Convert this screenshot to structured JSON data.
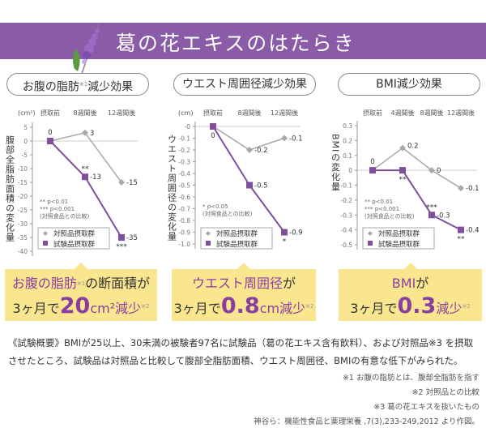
{
  "header": {
    "title": "葛の花エキスのはたらき"
  },
  "colors": {
    "banner": "#8a5ba6",
    "control": "#a9a9a9",
    "test": "#7f4e9c",
    "callout": "#fbe690"
  },
  "legend": {
    "control": "対照品摂取群",
    "test": "試験品摂取群"
  },
  "chart_data": [
    {
      "type": "line",
      "title": "お腹の脂肪",
      "title_sup": "※1",
      "title_suffix": "減少効果",
      "unit": "(cm²)",
      "ylabel": "腹部全脂肪面積の変化量",
      "categories": [
        "摂取前",
        "8週間後",
        "12週間後"
      ],
      "ylim": [
        -40,
        5
      ],
      "yticks": [
        "5",
        "0",
        "-5",
        "-10",
        "-15",
        "-20",
        "-25",
        "-30",
        "-35",
        "-40"
      ],
      "ytick_values": [
        5,
        0,
        -5,
        -10,
        -15,
        -20,
        -25,
        -30,
        -35,
        -40
      ],
      "series": [
        {
          "name": "対照品摂取群",
          "values": [
            0,
            3,
            -15
          ],
          "labels": [
            "0",
            "3",
            "-15"
          ],
          "sig": [
            "",
            "",
            ""
          ]
        },
        {
          "name": "試験品摂取群",
          "values": [
            0,
            -13,
            -35
          ],
          "labels": [
            "",
            "-13",
            "-35"
          ],
          "sig": [
            "",
            "**",
            "***"
          ]
        }
      ],
      "notes": [
        "** p<0.01",
        "*** p<0.001",
        "(対照食品との比較)"
      ]
    },
    {
      "type": "line",
      "title": "ウエスト周囲径減少効果",
      "unit": "(cm)",
      "ylabel": "ウエスト周囲径の変化量",
      "categories": [
        "摂取前",
        "8週間後",
        "12週間後"
      ],
      "ylim": [
        -1.0,
        0
      ],
      "yticks": [
        "-0",
        "-0.1",
        "-0.2",
        "-0.3",
        "-0.4",
        "-0.5",
        "-0.6",
        "-0.7",
        "-0.8",
        "-0.9",
        "-1.0"
      ],
      "ytick_values": [
        0,
        -0.1,
        -0.2,
        -0.3,
        -0.4,
        -0.5,
        -0.6,
        -0.7,
        -0.8,
        -0.9,
        -1.0
      ],
      "series": [
        {
          "name": "対照品摂取群",
          "values": [
            0,
            -0.2,
            -0.1
          ],
          "labels": [
            "0",
            "-0.2",
            "-0.1"
          ],
          "sig": [
            "",
            "",
            ""
          ]
        },
        {
          "name": "試験品摂取群",
          "values": [
            0,
            -0.5,
            -0.9
          ],
          "labels": [
            "",
            "-0.5",
            "-0.9"
          ],
          "sig": [
            "",
            "",
            "*"
          ]
        }
      ],
      "notes": [
        "* p<0.05",
        "(対照食品との比較)"
      ]
    },
    {
      "type": "line",
      "title": "BMI減少効果",
      "unit": "",
      "ylabel": "BMIの変化量",
      "categories": [
        "摂取前",
        "4週間後",
        "8週間後",
        "12週間後"
      ],
      "ylim": [
        -0.5,
        0.3
      ],
      "yticks": [
        "0.3",
        "0.2",
        "0.1",
        "0",
        "-0.1",
        "-0.2",
        "-0.3",
        "-0.4",
        "-0.5"
      ],
      "ytick_values": [
        0.3,
        0.2,
        0.1,
        0,
        -0.1,
        -0.2,
        -0.3,
        -0.4,
        -0.5
      ],
      "series": [
        {
          "name": "対照品摂取群",
          "values": [
            0,
            0.15,
            0,
            -0.12
          ],
          "labels": [
            "0",
            "0.2",
            "0",
            "-0.1"
          ],
          "sig": [
            "",
            "",
            "",
            ""
          ]
        },
        {
          "name": "試験品摂取群",
          "values": [
            0,
            0,
            -0.3,
            -0.4
          ],
          "labels": [
            "",
            "",
            "-0.3",
            "-0.4"
          ],
          "sig": [
            "",
            "**",
            "***",
            "**"
          ]
        }
      ],
      "notes": [
        "** p<0.01",
        "*** p<0.001",
        "(対照食品との比較)"
      ]
    }
  ],
  "callouts": [
    {
      "l1a": "お腹の脂肪",
      "l1sup": "※1",
      "l1b": "の断面積が",
      "l2a": "3ヶ月で",
      "big": "20",
      "unit": "cm²減少",
      "sup": "※2"
    },
    {
      "l1a": "ウエスト周囲径",
      "l1b": "が",
      "l2a": "3ヶ月で",
      "big": "0.8",
      "unit": "cm減少",
      "sup": "※2"
    },
    {
      "l1a": "BMI",
      "l1b": "が",
      "l2a": "3ヶ月で",
      "big": "0.3",
      "unit": "減少",
      "sup": "※2"
    }
  ],
  "summary": "《試験概要》BMIが25以上、30未満の被験者97名に試験品（葛の花エキス含有飲料）、および対照品※3 を摂取させたところ、試験品は対照品と比較して腹部全脂肪面積、ウエスト周囲径、BMIの有意な低下がみられた。",
  "footnotes": [
    "※1 お腹の脂肪とは、腹部全脂肪を指す",
    "※2 対照品との比較",
    "※3 葛の花エキスを抜いたもの",
    "神谷ら：機能性食品と薬理栄養 ,7(3),233-249,2012 より作図。"
  ]
}
